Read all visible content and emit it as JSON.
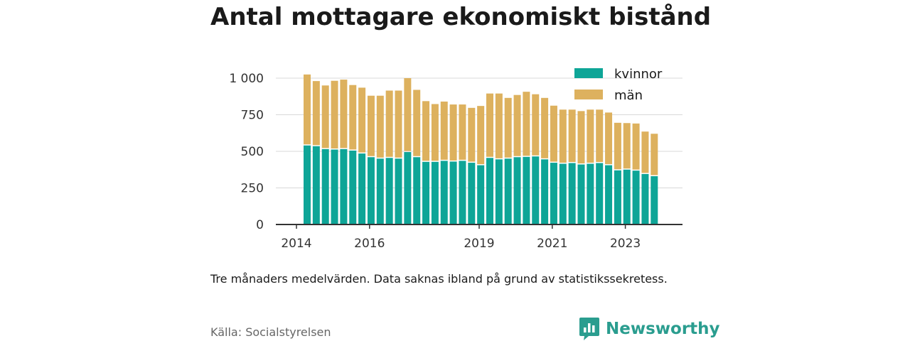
{
  "title": "Antal mottagare ekonomiskt bistånd",
  "note": "Tre månaders medelvärden. Data saknas ibland på grund av statistikssekretess.",
  "source": "Källa: Socialstyrelsen",
  "brand": {
    "name": "Newsworthy",
    "icon": "newsworthy-logo-icon",
    "color": "#2a9d8f"
  },
  "chart_data": {
    "type": "bar",
    "stacked": true,
    "title": "Antal mottagare ekonomiskt bistånd",
    "xlabel": "",
    "ylabel": "",
    "ylim": [
      0,
      1000
    ],
    "yticks": [
      0,
      250,
      500,
      750,
      1000
    ],
    "ytick_labels": [
      "0",
      "250",
      "500",
      "750",
      "1 000"
    ],
    "grid": true,
    "legend_position": "top-right",
    "x_tick_labels": [
      {
        "label": "2014",
        "index": 0
      },
      {
        "label": "2016",
        "index": 8
      },
      {
        "label": "2019",
        "index": 20
      },
      {
        "label": "2021",
        "index": 28
      },
      {
        "label": "2023",
        "index": 36
      }
    ],
    "series": [
      {
        "name": "kvinnor",
        "color": "#0ea597",
        "values": [
          540,
          535,
          515,
          512,
          515,
          505,
          485,
          460,
          450,
          455,
          450,
          495,
          460,
          428,
          428,
          435,
          430,
          435,
          422,
          405,
          455,
          445,
          450,
          460,
          462,
          465,
          445,
          422,
          415,
          420,
          410,
          415,
          420,
          405,
          370,
          375,
          368,
          345,
          330
        ]
      },
      {
        "name": "män",
        "color": "#ddb15e",
        "values": [
          485,
          445,
          435,
          470,
          475,
          448,
          450,
          420,
          430,
          460,
          465,
          505,
          460,
          415,
          395,
          405,
          390,
          385,
          375,
          405,
          440,
          450,
          415,
          425,
          445,
          425,
          420,
          390,
          370,
          365,
          365,
          370,
          365,
          360,
          325,
          318,
          322,
          290,
          290
        ]
      }
    ]
  }
}
